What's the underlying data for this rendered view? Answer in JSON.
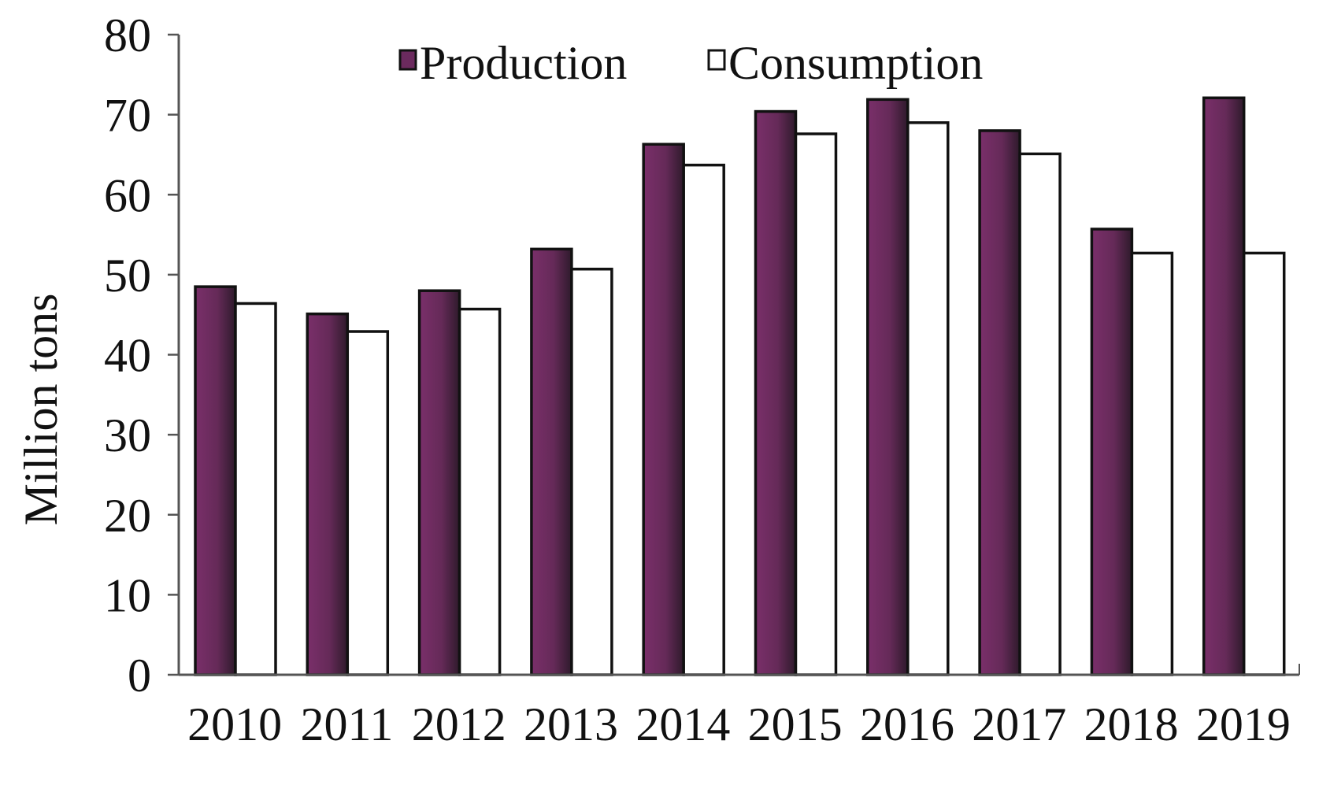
{
  "chart_data": {
    "type": "bar",
    "categories": [
      "2010",
      "2011",
      "2012",
      "2013",
      "2014",
      "2015",
      "2016",
      "2017",
      "2018",
      "2019"
    ],
    "series": [
      {
        "name": "Production",
        "values": [
          48.5,
          45.1,
          48.0,
          53.2,
          66.3,
          70.4,
          71.9,
          68.0,
          55.7,
          72.1
        ],
        "color": "#6b2a5e"
      },
      {
        "name": "Consumption",
        "values": [
          46.4,
          42.9,
          45.7,
          50.7,
          63.7,
          67.6,
          69.0,
          65.1,
          52.7,
          52.7
        ],
        "color": "#ffffff"
      }
    ],
    "title": "",
    "xlabel": "",
    "ylabel": "Million tons",
    "ylim": [
      0,
      80
    ],
    "yticks": [
      "0",
      "10",
      "20",
      "30",
      "40",
      "50",
      "60",
      "70",
      "80"
    ],
    "grid": false,
    "legend_position": "top"
  }
}
